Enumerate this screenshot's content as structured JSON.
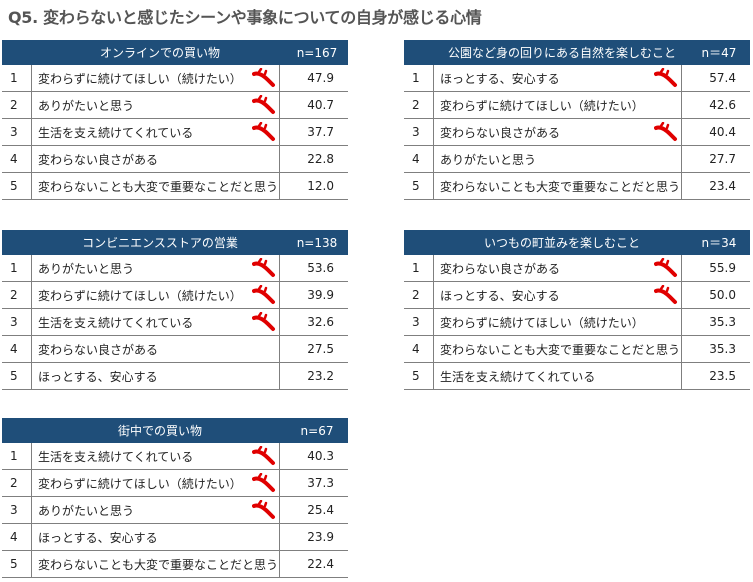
{
  "title": "Q5. 変わらないと感じたシーンや事象についての自身が感じる心情",
  "colors": {
    "header_bg": "#1f4e79",
    "mark": "#e00000"
  },
  "tables": [
    {
      "title": "オンラインでの買い物",
      "n": "n=167",
      "rows": [
        {
          "rank": "1",
          "label": "変わらずに続けてほしい（続けたい）",
          "value": "47.9",
          "mark": true
        },
        {
          "rank": "2",
          "label": "ありがたいと思う",
          "value": "40.7",
          "mark": true
        },
        {
          "rank": "3",
          "label": "生活を支え続けてくれている",
          "value": "37.7",
          "mark": true
        },
        {
          "rank": "4",
          "label": "変わらない良さがある",
          "value": "22.8",
          "mark": false
        },
        {
          "rank": "5",
          "label": "変わらないことも大変で重要なことだと思う",
          "value": "12.0",
          "mark": false
        }
      ]
    },
    {
      "title": "公園など身の回りにある自然を楽しむこと",
      "n": "n＝47",
      "rows": [
        {
          "rank": "1",
          "label": "ほっとする、安心する",
          "value": "57.4",
          "mark": true
        },
        {
          "rank": "2",
          "label": "変わらずに続けてほしい（続けたい）",
          "value": "42.6",
          "mark": false
        },
        {
          "rank": "3",
          "label": "変わらない良さがある",
          "value": "40.4",
          "mark": true
        },
        {
          "rank": "4",
          "label": "ありがたいと思う",
          "value": "27.7",
          "mark": false
        },
        {
          "rank": "5",
          "label": "変わらないことも大変で重要なことだと思う",
          "value": "23.4",
          "mark": false
        }
      ]
    },
    {
      "title": "コンビニエンスストアの営業",
      "n": "n=138",
      "rows": [
        {
          "rank": "1",
          "label": "ありがたいと思う",
          "value": "53.6",
          "mark": true
        },
        {
          "rank": "2",
          "label": "変わらずに続けてほしい（続けたい）",
          "value": "39.9",
          "mark": true
        },
        {
          "rank": "3",
          "label": "生活を支え続けてくれている",
          "value": "32.6",
          "mark": true
        },
        {
          "rank": "4",
          "label": "変わらない良さがある",
          "value": "27.5",
          "mark": false
        },
        {
          "rank": "5",
          "label": "ほっとする、安心する",
          "value": "23.2",
          "mark": false
        }
      ]
    },
    {
      "title": "いつもの町並みを楽しむこと",
      "n": "n＝34",
      "rows": [
        {
          "rank": "1",
          "label": "変わらない良さがある",
          "value": "55.9",
          "mark": true
        },
        {
          "rank": "2",
          "label": "ほっとする、安心する",
          "value": "50.0",
          "mark": true
        },
        {
          "rank": "3",
          "label": "変わらずに続けてほしい（続けたい）",
          "value": "35.3",
          "mark": false
        },
        {
          "rank": "4",
          "label": "変わらないことも大変で重要なことだと思う",
          "value": "35.3",
          "mark": false
        },
        {
          "rank": "5",
          "label": "生活を支え続けてくれている",
          "value": "23.5",
          "mark": false
        }
      ]
    },
    {
      "title": "街中での買い物",
      "n": "n=67",
      "rows": [
        {
          "rank": "1",
          "label": "生活を支え続けてくれている",
          "value": "40.3",
          "mark": true
        },
        {
          "rank": "2",
          "label": "変わらずに続けてほしい（続けたい）",
          "value": "37.3",
          "mark": true
        },
        {
          "rank": "3",
          "label": "ありがたいと思う",
          "value": "25.4",
          "mark": true
        },
        {
          "rank": "4",
          "label": "ほっとする、安心する",
          "value": "23.9",
          "mark": false
        },
        {
          "rank": "5",
          "label": "変わらないことも大変で重要なことだと思う",
          "value": "22.4",
          "mark": false
        }
      ]
    }
  ]
}
